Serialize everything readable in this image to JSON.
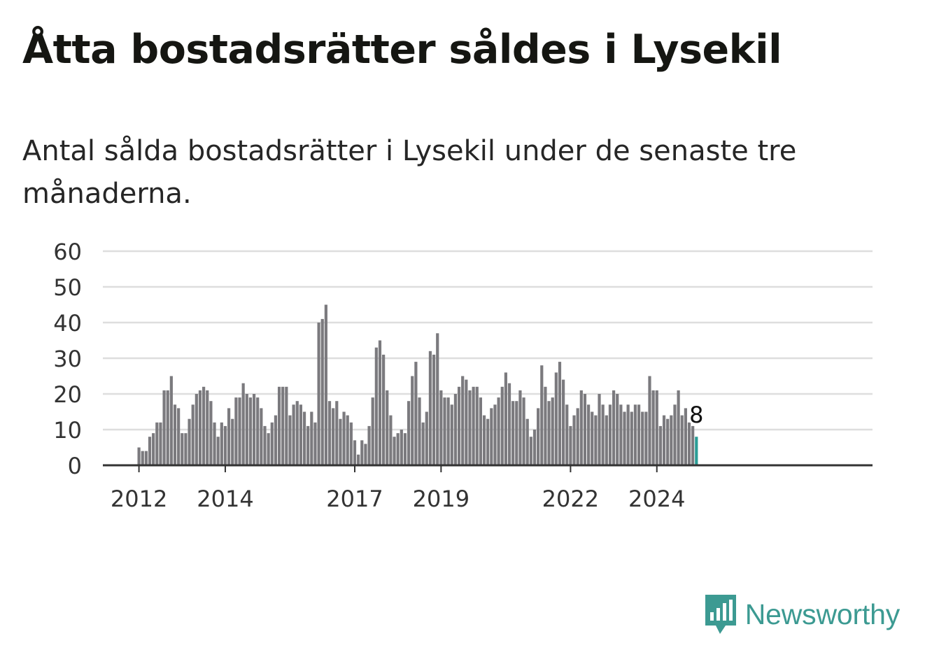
{
  "header": {
    "title": "Åtta bostadsrätter såldes i Lysekil",
    "subtitle": "Antal sålda bostadsrätter i Lysekil under de senaste tre månaderna."
  },
  "brand": {
    "name": "Newsworthy",
    "color": "#3c9a92",
    "icon": "newsworthy-logo-icon"
  },
  "colors": {
    "bar": "#7b7a7e",
    "highlight": "#2a9d96",
    "grid": "#dedede",
    "axis": "#333333"
  },
  "chart_data": {
    "type": "bar",
    "ylim": [
      0,
      60
    ],
    "yticks": [
      0,
      10,
      20,
      30,
      40,
      50,
      60
    ],
    "xtick_labels": [
      "2012",
      "2014",
      "2017",
      "2019",
      "2022",
      "2024"
    ],
    "start": "2012-01",
    "grid": true,
    "values": [
      5,
      4,
      4,
      8,
      9,
      12,
      12,
      21,
      21,
      25,
      17,
      16,
      9,
      9,
      13,
      17,
      20,
      21,
      22,
      21,
      18,
      12,
      8,
      12,
      11,
      16,
      13,
      19,
      19,
      23,
      20,
      19,
      20,
      19,
      16,
      11,
      9,
      12,
      14,
      22,
      22,
      22,
      14,
      17,
      18,
      17,
      15,
      11,
      15,
      12,
      40,
      41,
      45,
      18,
      16,
      18,
      13,
      15,
      14,
      12,
      7,
      3,
      7,
      6,
      11,
      19,
      33,
      35,
      31,
      21,
      14,
      8,
      9,
      10,
      9,
      18,
      25,
      29,
      19,
      12,
      15,
      32,
      31,
      37,
      21,
      19,
      19,
      17,
      20,
      22,
      25,
      24,
      21,
      22,
      22,
      19,
      14,
      13,
      16,
      17,
      19,
      22,
      26,
      23,
      18,
      18,
      21,
      19,
      13,
      8,
      10,
      16,
      28,
      22,
      18,
      19,
      26,
      29,
      24,
      17,
      11,
      14,
      16,
      21,
      20,
      17,
      15,
      14,
      20,
      17,
      14,
      17,
      21,
      20,
      17,
      15,
      17,
      15,
      17,
      17,
      15,
      15,
      25,
      21,
      21,
      11,
      14,
      13,
      14,
      17,
      21,
      14,
      16,
      12,
      11,
      8
    ],
    "highlight": {
      "label": "8",
      "value": 8
    }
  }
}
